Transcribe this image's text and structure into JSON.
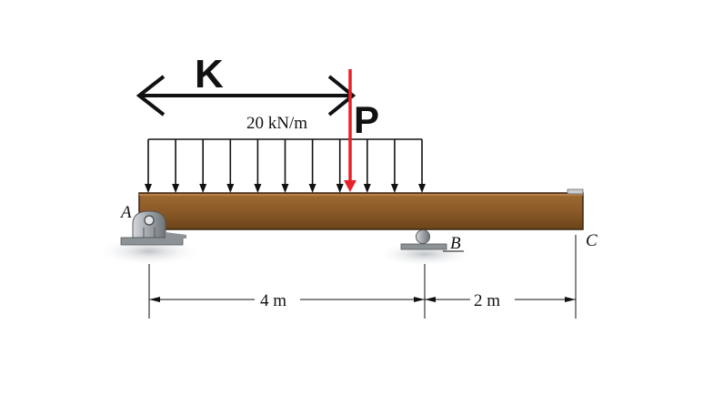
{
  "labels": {
    "span_arrow": "K",
    "point_load": "P",
    "distributed_load": "20 kN/m",
    "support_a": "A",
    "support_b": "B",
    "free_end": "C",
    "dim_ab": "4 m",
    "dim_bc": "2 m"
  },
  "colors": {
    "beam_fill": "#8a5a28",
    "beam_edge": "#3a2410",
    "point_load": "#e8202a",
    "ink": "#111111",
    "support_gray": "#9a9ea4"
  },
  "load": {
    "intensity_kN_per_m": 20,
    "arrow_count": 11
  }
}
